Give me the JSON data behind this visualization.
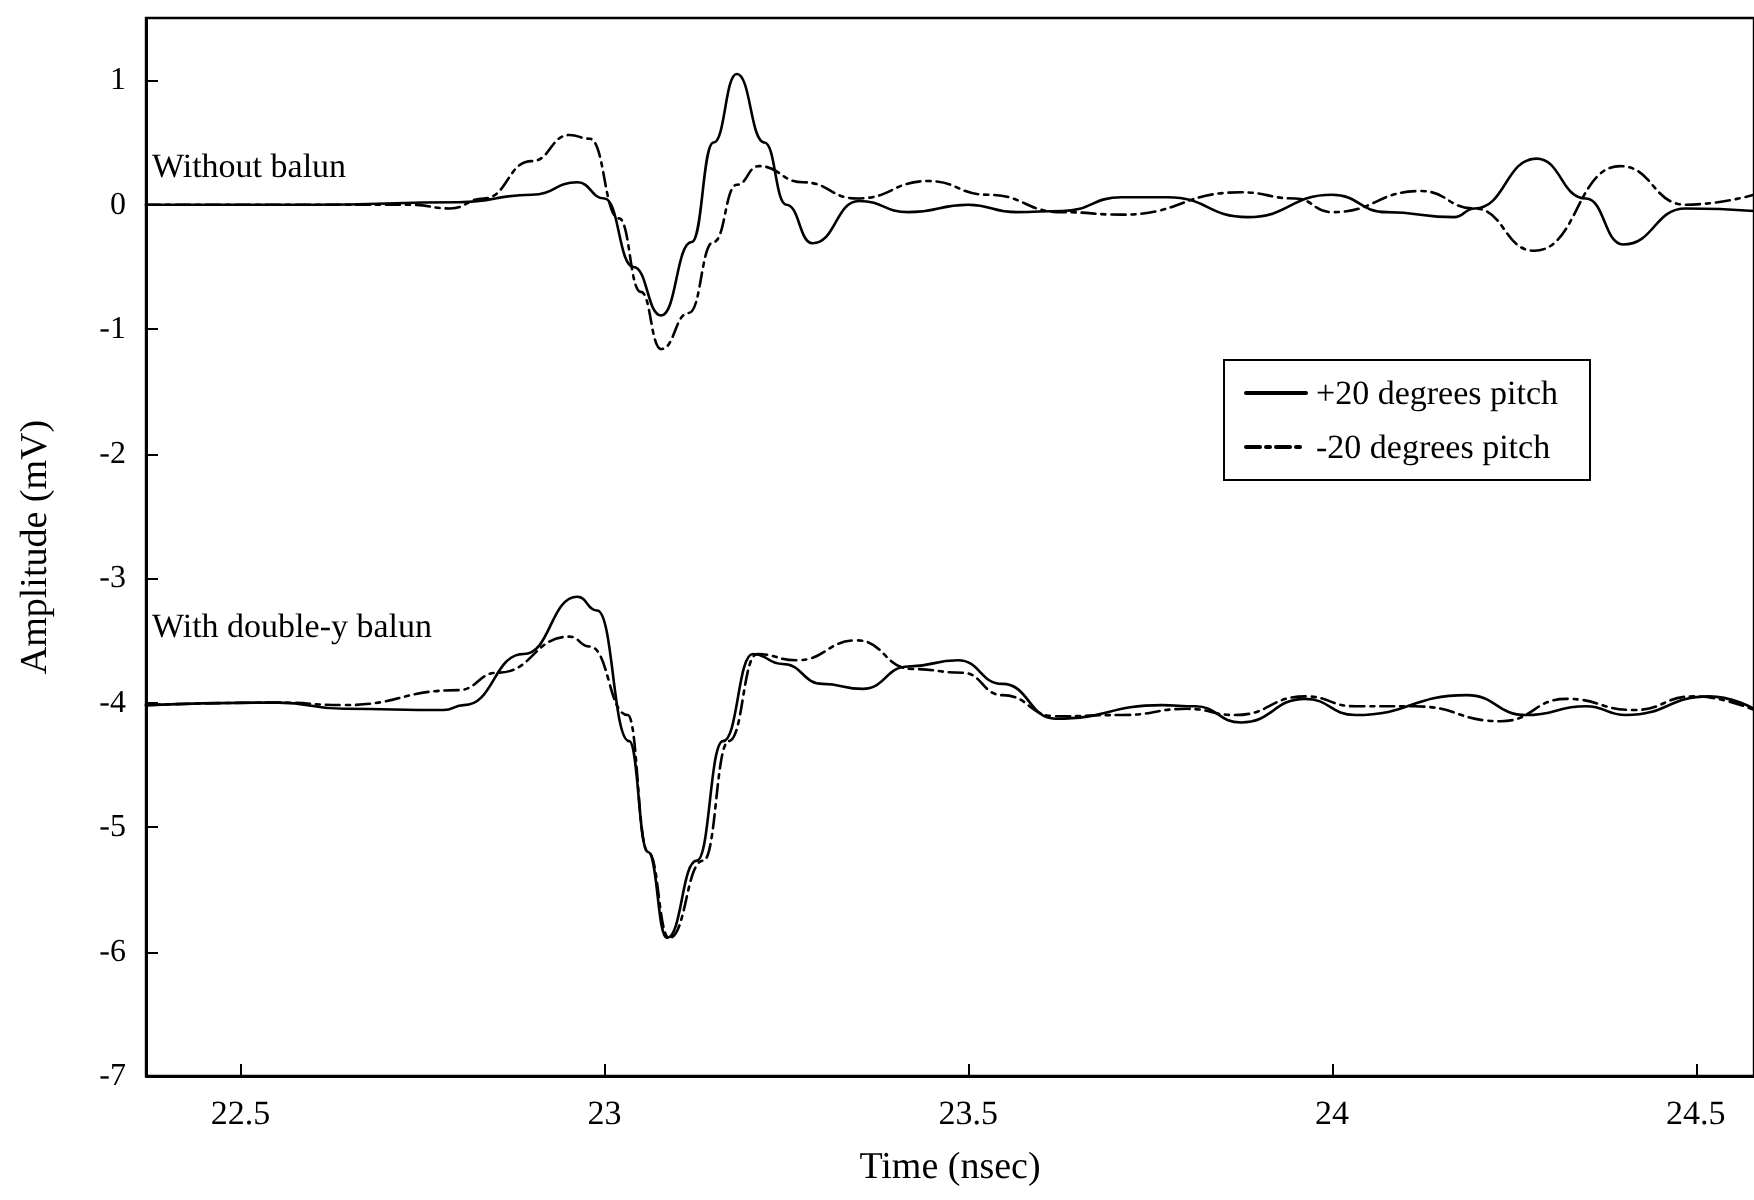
{
  "chart_data": {
    "type": "line",
    "xlabel": "Time (nsec)",
    "ylabel": "Amplitude (mV)",
    "xlim": [
      22.37,
      24.58
    ],
    "xticks": [
      22.5,
      23,
      23.5,
      24,
      24.5
    ],
    "ylim": [
      -7,
      1.5
    ],
    "yticks": [
      -7,
      -6,
      -5,
      -4,
      -3,
      -2,
      -1,
      0,
      1
    ],
    "grid": false,
    "legend": "right",
    "marker": "none",
    "annotations": [
      "Without balun",
      "With double-y balun"
    ],
    "series": [
      {
        "name": "+20 degrees pitch",
        "color": "#000000",
        "line_style": "solid",
        "x": [
          22.37,
          22.6,
          22.8,
          22.9,
          22.963,
          23.0,
          23.04,
          23.078,
          23.12,
          23.15,
          23.182,
          23.22,
          23.25,
          23.286,
          23.35,
          23.418,
          23.5,
          23.566,
          23.629,
          23.711,
          23.774,
          23.884,
          24.0,
          24.075,
          24.168,
          24.196,
          24.281,
          24.349,
          24.4,
          24.486,
          24.58
        ],
        "values": [
          0,
          0,
          0.02,
          0.08,
          0.18,
          0.05,
          -0.5,
          -0.89,
          -0.3,
          0.5,
          1.05,
          0.5,
          0,
          -0.31,
          0.03,
          -0.06,
          0,
          -0.06,
          -0.05,
          0.06,
          0.06,
          -0.1,
          0.08,
          -0.06,
          -0.1,
          -0.03,
          0.37,
          0.05,
          -0.32,
          -0.03,
          -0.05
        ]
      },
      {
        "name": "-20 degrees pitch",
        "color": "#000000",
        "line_style": "dashed",
        "x": [
          22.37,
          22.6,
          22.733,
          22.788,
          22.834,
          22.9,
          22.952,
          22.98,
          23.02,
          23.05,
          23.078,
          23.116,
          23.15,
          23.182,
          23.212,
          23.273,
          23.347,
          23.445,
          23.527,
          23.629,
          23.711,
          23.875,
          23.949,
          24.0,
          24.122,
          24.196,
          24.278,
          24.396,
          24.486,
          24.58
        ],
        "values": [
          0,
          0,
          0,
          -0.03,
          0.05,
          0.35,
          0.56,
          0.53,
          -0.11,
          -0.7,
          -1.16,
          -0.87,
          -0.3,
          0.16,
          0.31,
          0.18,
          0.05,
          0.19,
          0.08,
          -0.06,
          -0.08,
          0.1,
          0.05,
          -0.06,
          0.11,
          -0.03,
          -0.37,
          0.31,
          0,
          0.08
        ]
      },
      {
        "color": "#000000",
        "line_style": "solid",
        "x": [
          22.37,
          22.552,
          22.642,
          22.779,
          22.807,
          22.889,
          22.963,
          22.99,
          23.034,
          23.06,
          23.086,
          23.127,
          23.163,
          23.204,
          23.245,
          23.3,
          23.355,
          23.418,
          23.486,
          23.547,
          23.62,
          23.766,
          23.812,
          23.875,
          23.963,
          24.032,
          24.185,
          24.267,
          24.349,
          24.404,
          24.519,
          24.58
        ],
        "values": [
          -4.02,
          -4,
          -4.05,
          -4.06,
          -4.02,
          -3.61,
          -3.15,
          -3.26,
          -4.31,
          -5.2,
          -5.89,
          -5.27,
          -4.31,
          -3.61,
          -3.69,
          -3.85,
          -3.89,
          -3.71,
          -3.66,
          -3.85,
          -4.13,
          -4.02,
          -4.03,
          -4.16,
          -3.97,
          -4.1,
          -3.94,
          -4.1,
          -4.03,
          -4.1,
          -3.95,
          -4.05
        ]
      },
      {
        "color": "#000000",
        "line_style": "dashed",
        "x": [
          22.37,
          22.552,
          22.642,
          22.799,
          22.853,
          22.952,
          22.98,
          23.032,
          23.06,
          23.089,
          23.136,
          23.171,
          23.21,
          23.264,
          23.347,
          23.423,
          23.492,
          23.547,
          23.62,
          23.711,
          23.801,
          23.867,
          23.963,
          24.032,
          24.114,
          24.232,
          24.322,
          24.415,
          24.497,
          24.58
        ],
        "values": [
          -4.02,
          -4,
          -4.02,
          -3.9,
          -3.76,
          -3.47,
          -3.55,
          -4.1,
          -5.2,
          -5.89,
          -5.27,
          -4.31,
          -3.61,
          -3.66,
          -3.5,
          -3.73,
          -3.76,
          -3.94,
          -4.11,
          -4.1,
          -4.05,
          -4.1,
          -3.95,
          -4.03,
          -4.03,
          -4.15,
          -3.97,
          -4.06,
          -3.95,
          -4.06
        ]
      }
    ]
  }
}
